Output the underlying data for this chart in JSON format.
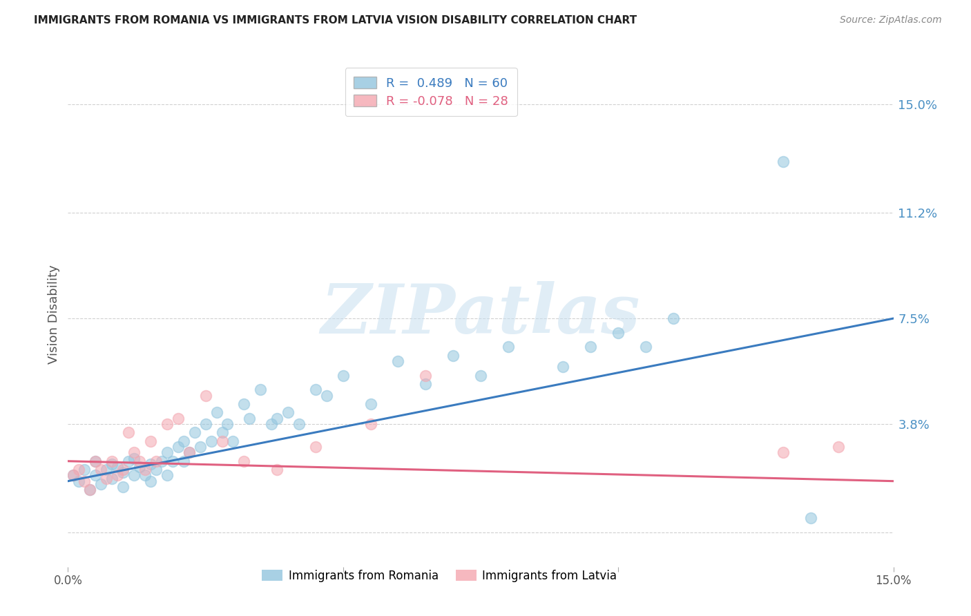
{
  "title": "IMMIGRANTS FROM ROMANIA VS IMMIGRANTS FROM LATVIA VISION DISABILITY CORRELATION CHART",
  "source": "Source: ZipAtlas.com",
  "ylabel": "Vision Disability",
  "xlim": [
    0.0,
    0.15
  ],
  "ylim": [
    -0.012,
    0.165
  ],
  "yticks": [
    0.0,
    0.038,
    0.075,
    0.112,
    0.15
  ],
  "ytick_labels": [
    "",
    "3.8%",
    "7.5%",
    "11.2%",
    "15.0%"
  ],
  "xticks": [
    0.0,
    0.05,
    0.1,
    0.15
  ],
  "xtick_labels": [
    "0.0%",
    "",
    "",
    "15.0%"
  ],
  "romania_R": 0.489,
  "romania_N": 60,
  "latvia_R": -0.078,
  "latvia_N": 28,
  "romania_color": "#92c5de",
  "latvia_color": "#f4a6b0",
  "line_romania_color": "#3a7bbf",
  "line_latvia_color": "#e06080",
  "romania_scatter_x": [
    0.001,
    0.002,
    0.003,
    0.004,
    0.005,
    0.005,
    0.006,
    0.007,
    0.008,
    0.008,
    0.009,
    0.01,
    0.01,
    0.011,
    0.012,
    0.012,
    0.013,
    0.014,
    0.015,
    0.015,
    0.016,
    0.017,
    0.018,
    0.018,
    0.019,
    0.02,
    0.021,
    0.021,
    0.022,
    0.023,
    0.024,
    0.025,
    0.026,
    0.027,
    0.028,
    0.029,
    0.03,
    0.032,
    0.033,
    0.035,
    0.037,
    0.038,
    0.04,
    0.042,
    0.045,
    0.047,
    0.05,
    0.055,
    0.06,
    0.065,
    0.07,
    0.075,
    0.08,
    0.09,
    0.095,
    0.1,
    0.105,
    0.11,
    0.13,
    0.135
  ],
  "romania_scatter_y": [
    0.02,
    0.018,
    0.022,
    0.015,
    0.025,
    0.02,
    0.017,
    0.022,
    0.024,
    0.019,
    0.023,
    0.021,
    0.016,
    0.025,
    0.02,
    0.026,
    0.023,
    0.02,
    0.018,
    0.024,
    0.022,
    0.025,
    0.028,
    0.02,
    0.025,
    0.03,
    0.025,
    0.032,
    0.028,
    0.035,
    0.03,
    0.038,
    0.032,
    0.042,
    0.035,
    0.038,
    0.032,
    0.045,
    0.04,
    0.05,
    0.038,
    0.04,
    0.042,
    0.038,
    0.05,
    0.048,
    0.055,
    0.045,
    0.06,
    0.052,
    0.062,
    0.055,
    0.065,
    0.058,
    0.065,
    0.07,
    0.065,
    0.075,
    0.13,
    0.005
  ],
  "latvia_scatter_x": [
    0.001,
    0.002,
    0.003,
    0.004,
    0.005,
    0.006,
    0.007,
    0.008,
    0.009,
    0.01,
    0.011,
    0.012,
    0.013,
    0.014,
    0.015,
    0.016,
    0.018,
    0.02,
    0.022,
    0.025,
    0.028,
    0.032,
    0.038,
    0.045,
    0.055,
    0.065,
    0.13,
    0.14
  ],
  "latvia_scatter_y": [
    0.02,
    0.022,
    0.018,
    0.015,
    0.025,
    0.022,
    0.019,
    0.025,
    0.02,
    0.022,
    0.035,
    0.028,
    0.025,
    0.022,
    0.032,
    0.025,
    0.038,
    0.04,
    0.028,
    0.048,
    0.032,
    0.025,
    0.022,
    0.03,
    0.038,
    0.055,
    0.028,
    0.03
  ],
  "romania_line_x": [
    0.0,
    0.15
  ],
  "romania_line_y": [
    0.018,
    0.075
  ],
  "latvia_line_x": [
    0.0,
    0.15
  ],
  "latvia_line_y": [
    0.025,
    0.018
  ],
  "watermark_text": "ZIPatlas",
  "watermark_color": "#c8dff0",
  "watermark_alpha": 0.55
}
